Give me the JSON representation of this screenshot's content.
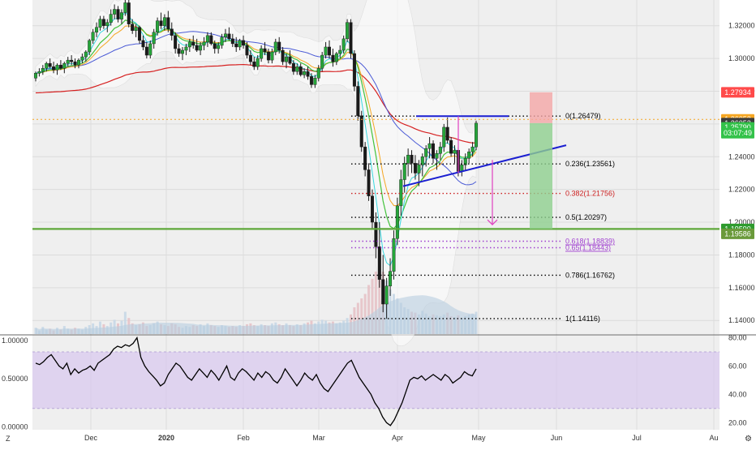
{
  "colors": {
    "background": "#ffffff",
    "pane": "#efefef",
    "grid": "#dcdcdc",
    "candle_up": "#26a63a",
    "candle_down": "#1a1a1a",
    "bollinger_fill": "#ffffff",
    "ma_blue": "#4b5bd6",
    "ma_red": "#d62020",
    "ma_green": "#44c23c",
    "ma_orange": "#f5a623",
    "ma_cyan": "#38d8e0",
    "trendline": "#1b1fd1",
    "fib": "#000000",
    "fib_382": "#cc2020",
    "fib_618": "#a040d0",
    "support": "#5fa83a",
    "projection": "#e040c0",
    "rsi_band": "#d9c8ef",
    "rsi_line": "#000000",
    "volume": "#b8cde0"
  },
  "chart_data": [
    {
      "type": "candlestick",
      "pane": "price",
      "x_tick_labels": [
        "Dec",
        "2020",
        "Feb",
        "Mar",
        "Apr",
        "May",
        "Jun",
        "Jul",
        "Au"
      ],
      "y_tick_labels": [
        "1.32000",
        "1.30000",
        "1.28000",
        "1.26000",
        "1.24000",
        "1.22000",
        "1.20000",
        "1.18000",
        "1.16000",
        "1.14000"
      ],
      "ylim": [
        1.1317,
        1.3357
      ],
      "candles": [
        [
          1.288,
          1.292,
          1.286,
          1.291
        ],
        [
          1.291,
          1.294,
          1.289,
          1.292
        ],
        [
          1.292,
          1.296,
          1.29,
          1.294
        ],
        [
          1.294,
          1.298,
          1.292,
          1.297
        ],
        [
          1.297,
          1.3,
          1.294,
          1.295
        ],
        [
          1.295,
          1.298,
          1.291,
          1.293
        ],
        [
          1.293,
          1.297,
          1.29,
          1.296
        ],
        [
          1.296,
          1.299,
          1.293,
          1.294
        ],
        [
          1.294,
          1.298,
          1.291,
          1.297
        ],
        [
          1.297,
          1.301,
          1.295,
          1.299
        ],
        [
          1.299,
          1.302,
          1.296,
          1.298
        ],
        [
          1.298,
          1.3,
          1.294,
          1.296
        ],
        [
          1.296,
          1.3,
          1.294,
          1.299
        ],
        [
          1.299,
          1.303,
          1.297,
          1.301
        ],
        [
          1.301,
          1.305,
          1.298,
          1.304
        ],
        [
          1.304,
          1.312,
          1.302,
          1.311
        ],
        [
          1.311,
          1.318,
          1.309,
          1.316
        ],
        [
          1.316,
          1.322,
          1.313,
          1.319
        ],
        [
          1.319,
          1.326,
          1.317,
          1.324
        ],
        [
          1.324,
          1.326,
          1.318,
          1.32
        ],
        [
          1.32,
          1.324,
          1.316,
          1.322
        ],
        [
          1.322,
          1.33,
          1.32,
          1.327
        ],
        [
          1.327,
          1.333,
          1.324,
          1.33
        ],
        [
          1.33,
          1.332,
          1.322,
          1.324
        ],
        [
          1.324,
          1.33,
          1.321,
          1.328
        ],
        [
          1.328,
          1.336,
          1.326,
          1.334
        ],
        [
          1.334,
          1.336,
          1.319,
          1.321
        ],
        [
          1.321,
          1.324,
          1.315,
          1.317
        ],
        [
          1.317,
          1.321,
          1.313,
          1.319
        ],
        [
          1.319,
          1.32,
          1.309,
          1.311
        ],
        [
          1.311,
          1.314,
          1.305,
          1.307
        ],
        [
          1.307,
          1.31,
          1.3,
          1.302
        ],
        [
          1.302,
          1.311,
          1.3,
          1.309
        ],
        [
          1.309,
          1.318,
          1.306,
          1.316
        ],
        [
          1.316,
          1.325,
          1.314,
          1.323
        ],
        [
          1.323,
          1.328,
          1.318,
          1.32
        ],
        [
          1.32,
          1.327,
          1.317,
          1.325
        ],
        [
          1.325,
          1.329,
          1.316,
          1.318
        ],
        [
          1.318,
          1.322,
          1.311,
          1.314
        ],
        [
          1.314,
          1.316,
          1.303,
          1.306
        ],
        [
          1.306,
          1.309,
          1.301,
          1.303
        ],
        [
          1.303,
          1.307,
          1.299,
          1.305
        ],
        [
          1.305,
          1.309,
          1.302,
          1.307
        ],
        [
          1.307,
          1.312,
          1.304,
          1.31
        ],
        [
          1.31,
          1.314,
          1.306,
          1.308
        ],
        [
          1.308,
          1.312,
          1.304,
          1.305
        ],
        [
          1.305,
          1.31,
          1.302,
          1.308
        ],
        [
          1.308,
          1.313,
          1.305,
          1.31
        ],
        [
          1.31,
          1.316,
          1.307,
          1.314
        ],
        [
          1.314,
          1.316,
          1.308,
          1.309
        ],
        [
          1.309,
          1.311,
          1.303,
          1.306
        ],
        [
          1.306,
          1.31,
          1.303,
          1.308
        ],
        [
          1.308,
          1.315,
          1.306,
          1.313
        ],
        [
          1.313,
          1.318,
          1.31,
          1.315
        ],
        [
          1.315,
          1.319,
          1.311,
          1.312
        ],
        [
          1.312,
          1.315,
          1.307,
          1.309
        ],
        [
          1.309,
          1.313,
          1.304,
          1.307
        ],
        [
          1.307,
          1.312,
          1.305,
          1.311
        ],
        [
          1.311,
          1.314,
          1.306,
          1.308
        ],
        [
          1.308,
          1.31,
          1.3,
          1.302
        ],
        [
          1.302,
          1.305,
          1.296,
          1.298
        ],
        [
          1.298,
          1.301,
          1.293,
          1.295
        ],
        [
          1.295,
          1.302,
          1.293,
          1.3
        ],
        [
          1.3,
          1.308,
          1.298,
          1.306
        ],
        [
          1.306,
          1.31,
          1.302,
          1.304
        ],
        [
          1.304,
          1.306,
          1.297,
          1.299
        ],
        [
          1.299,
          1.306,
          1.297,
          1.304
        ],
        [
          1.304,
          1.312,
          1.302,
          1.31
        ],
        [
          1.31,
          1.313,
          1.303,
          1.305
        ],
        [
          1.305,
          1.307,
          1.296,
          1.298
        ],
        [
          1.298,
          1.303,
          1.294,
          1.301
        ],
        [
          1.301,
          1.305,
          1.296,
          1.297
        ],
        [
          1.297,
          1.299,
          1.29,
          1.292
        ],
        [
          1.292,
          1.297,
          1.29,
          1.295
        ],
        [
          1.295,
          1.297,
          1.289,
          1.29
        ],
        [
          1.29,
          1.294,
          1.288,
          1.292
        ],
        [
          1.292,
          1.295,
          1.287,
          1.289
        ],
        [
          1.289,
          1.291,
          1.282,
          1.284
        ],
        [
          1.284,
          1.29,
          1.282,
          1.288
        ],
        [
          1.288,
          1.296,
          1.286,
          1.294
        ],
        [
          1.294,
          1.304,
          1.292,
          1.302
        ],
        [
          1.302,
          1.31,
          1.3,
          1.307
        ],
        [
          1.307,
          1.311,
          1.3,
          1.302
        ],
        [
          1.302,
          1.306,
          1.295,
          1.298
        ],
        [
          1.298,
          1.304,
          1.296,
          1.303
        ],
        [
          1.303,
          1.308,
          1.3,
          1.305
        ],
        [
          1.305,
          1.314,
          1.303,
          1.312
        ],
        [
          1.312,
          1.324,
          1.31,
          1.322
        ],
        [
          1.322,
          1.324,
          1.3,
          1.303
        ],
        [
          1.303,
          1.305,
          1.28,
          1.283
        ],
        [
          1.283,
          1.286,
          1.262,
          1.265
        ],
        [
          1.265,
          1.268,
          1.243,
          1.246
        ],
        [
          1.246,
          1.249,
          1.228,
          1.232
        ],
        [
          1.232,
          1.236,
          1.213,
          1.216
        ],
        [
          1.216,
          1.22,
          1.196,
          1.2
        ],
        [
          1.2,
          1.206,
          1.178,
          1.185
        ],
        [
          1.185,
          1.2,
          1.16,
          1.165
        ],
        [
          1.165,
          1.18,
          1.145,
          1.15
        ],
        [
          1.15,
          1.166,
          1.141,
          1.161
        ],
        [
          1.161,
          1.178,
          1.155,
          1.17
        ],
        [
          1.17,
          1.195,
          1.165,
          1.19
        ],
        [
          1.19,
          1.215,
          1.186,
          1.21
        ],
        [
          1.21,
          1.232,
          1.204,
          1.226
        ],
        [
          1.226,
          1.24,
          1.218,
          1.236
        ],
        [
          1.236,
          1.245,
          1.228,
          1.241
        ],
        [
          1.241,
          1.244,
          1.23,
          1.236
        ],
        [
          1.236,
          1.241,
          1.226,
          1.23
        ],
        [
          1.23,
          1.238,
          1.222,
          1.235
        ],
        [
          1.235,
          1.242,
          1.228,
          1.24
        ],
        [
          1.24,
          1.247,
          1.234,
          1.245
        ],
        [
          1.245,
          1.252,
          1.239,
          1.248
        ],
        [
          1.248,
          1.25,
          1.236,
          1.239
        ],
        [
          1.239,
          1.244,
          1.232,
          1.242
        ],
        [
          1.242,
          1.249,
          1.238,
          1.246
        ],
        [
          1.246,
          1.26,
          1.243,
          1.258
        ],
        [
          1.258,
          1.264,
          1.248,
          1.25
        ],
        [
          1.25,
          1.252,
          1.24,
          1.242
        ],
        [
          1.242,
          1.247,
          1.236,
          1.244
        ],
        [
          1.244,
          1.246,
          1.228,
          1.231
        ],
        [
          1.231,
          1.238,
          1.228,
          1.235
        ],
        [
          1.235,
          1.242,
          1.232,
          1.239
        ],
        [
          1.239,
          1.245,
          1.236,
          1.243
        ],
        [
          1.243,
          1.249,
          1.24,
          1.246
        ],
        [
          1.246,
          1.262,
          1.244,
          1.2605
        ]
      ],
      "volume": [
        0.07,
        0.04,
        0.08,
        0.05,
        0.06,
        0.04,
        0.07,
        0.05,
        0.09,
        0.06,
        0.05,
        0.07,
        0.06,
        0.05,
        0.08,
        0.1,
        0.12,
        0.09,
        0.14,
        0.11,
        0.09,
        0.13,
        0.16,
        0.12,
        0.15,
        0.25,
        0.18,
        0.12,
        0.1,
        0.11,
        0.13,
        0.09,
        0.1,
        0.12,
        0.14,
        0.11,
        0.1,
        0.09,
        0.12,
        0.11,
        0.08,
        0.07,
        0.09,
        0.08,
        0.1,
        0.09,
        0.11,
        0.09,
        0.12,
        0.1,
        0.09,
        0.08,
        0.1,
        0.09,
        0.08,
        0.09,
        0.08,
        0.1,
        0.09,
        0.11,
        0.12,
        0.1,
        0.09,
        0.11,
        0.1,
        0.09,
        0.12,
        0.13,
        0.11,
        0.1,
        0.12,
        0.1,
        0.09,
        0.11,
        0.1,
        0.12,
        0.13,
        0.15,
        0.12,
        0.14,
        0.16,
        0.15,
        0.13,
        0.14,
        0.12,
        0.13,
        0.15,
        0.18,
        0.22,
        0.3,
        0.35,
        0.4,
        0.45,
        0.55,
        0.62,
        0.7,
        0.78,
        0.7,
        0.6,
        0.5,
        0.45,
        0.4,
        0.35,
        0.3,
        0.28,
        0.25,
        0.24,
        0.22,
        0.26,
        0.23,
        0.2,
        0.22,
        0.21,
        0.2,
        0.22,
        0.24,
        0.2,
        0.19,
        0.21,
        0.18,
        0.2,
        0.22,
        0.23,
        0.25
      ],
      "fib_levels": [
        {
          "label": "0(1.26479)",
          "price": 1.26479
        },
        {
          "label": "0.236(1.23561)",
          "price": 1.23561
        },
        {
          "label": "0.382(1.21756)",
          "price": 1.21756
        },
        {
          "label": "0.5(1.20297)",
          "price": 1.20297
        },
        {
          "label": "0.618(1.18839)",
          "price": 1.18839
        },
        {
          "label": "0.65(1.18443)",
          "price": 1.18443
        },
        {
          "label": "0.786(1.16762)",
          "price": 1.16762
        },
        {
          "label": "1(1.14116)",
          "price": 1.14116
        }
      ],
      "price_labels": [
        {
          "text": "1.27934",
          "price": 1.27934,
          "bg": "#ff4a4a",
          "fg": "#ffffff"
        },
        {
          "text": "1.26052",
          "price": 1.2628,
          "bg": "#f5a623",
          "fg": "#ffffff"
        },
        {
          "text": "1.26052",
          "price": 1.2605,
          "bg": "#3c3c3c",
          "fg": "#ffffff"
        },
        {
          "text": "1.25790",
          "price": 1.2579,
          "bg": "#33c24a",
          "fg": "#ffffff"
        },
        {
          "text": "03:07:49",
          "price": 1.2544,
          "bg": "#33c24a",
          "fg": "#ffffff"
        },
        {
          "text": "1.19590",
          "price": 1.1959,
          "bg": "#2e9b2e",
          "fg": "#ffffff"
        },
        {
          "text": "1.19586",
          "price": 1.1929,
          "bg": "#6a9a3a",
          "fg": "#ffffff"
        }
      ],
      "support_price": 1.1959,
      "entry_price": 1.2605,
      "stop_price": 1.27934
    },
    {
      "type": "line",
      "pane": "rsi",
      "y_tick_labels_left": [
        "1.00000",
        "0.50000",
        "0.00000"
      ],
      "y_tick_labels_right": [
        "80.00",
        "60.00",
        "40.00",
        "20.00"
      ],
      "ylim": [
        15,
        82
      ],
      "band": [
        30,
        70
      ],
      "values": [
        62,
        61,
        63,
        66,
        68,
        64,
        60,
        58,
        62,
        54,
        58,
        55,
        57,
        58,
        60,
        57,
        62,
        64,
        66,
        68,
        72,
        74,
        73,
        75,
        74,
        76,
        80,
        66,
        60,
        56,
        53,
        50,
        46,
        48,
        54,
        58,
        62,
        60,
        56,
        52,
        50,
        54,
        58,
        55,
        52,
        57,
        54,
        50,
        55,
        60,
        52,
        50,
        55,
        58,
        56,
        53,
        50,
        55,
        52,
        56,
        54,
        50,
        48,
        52,
        58,
        54,
        50,
        46,
        50,
        55,
        52,
        50,
        54,
        48,
        44,
        42,
        46,
        50,
        54,
        58,
        62,
        64,
        58,
        52,
        48,
        44,
        40,
        34,
        30,
        24,
        20,
        18,
        22,
        28,
        34,
        42,
        50,
        52,
        51,
        53,
        50,
        52,
        54,
        52,
        50,
        54,
        52,
        48,
        50,
        52,
        56,
        54,
        53,
        58
      ]
    }
  ]
}
